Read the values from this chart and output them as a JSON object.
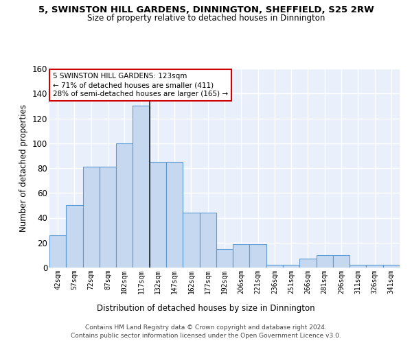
{
  "title": "5, SWINSTON HILL GARDENS, DINNINGTON, SHEFFIELD, S25 2RW",
  "subtitle": "Size of property relative to detached houses in Dinnington",
  "xlabel": "Distribution of detached houses by size in Dinnington",
  "ylabel": "Number of detached properties",
  "bar_color": "#c5d8f0",
  "bar_edge_color": "#5b9bd5",
  "background_color": "#eaf0fb",
  "grid_color": "#ffffff",
  "bin_labels": [
    "42sqm",
    "57sqm",
    "72sqm",
    "87sqm",
    "102sqm",
    "117sqm",
    "132sqm",
    "147sqm",
    "162sqm",
    "177sqm",
    "192sqm",
    "206sqm",
    "221sqm",
    "236sqm",
    "251sqm",
    "266sqm",
    "281sqm",
    "296sqm",
    "311sqm",
    "326sqm",
    "341sqm"
  ],
  "bar_values": [
    26,
    50,
    81,
    81,
    100,
    130,
    85,
    85,
    44,
    44,
    15,
    19,
    19,
    2,
    2,
    7,
    10,
    10,
    2,
    2,
    2
  ],
  "ylim": [
    0,
    160
  ],
  "yticks": [
    0,
    20,
    40,
    60,
    80,
    100,
    120,
    140,
    160
  ],
  "annotation_text": "5 SWINSTON HILL GARDENS: 123sqm\n← 71% of detached houses are smaller (411)\n28% of semi-detached houses are larger (165) →",
  "annotation_box_color": "#ffffff",
  "annotation_box_edge": "#cc0000",
  "property_line_x": 5.5,
  "footer_text": "Contains HM Land Registry data © Crown copyright and database right 2024.\nContains public sector information licensed under the Open Government Licence v3.0."
}
